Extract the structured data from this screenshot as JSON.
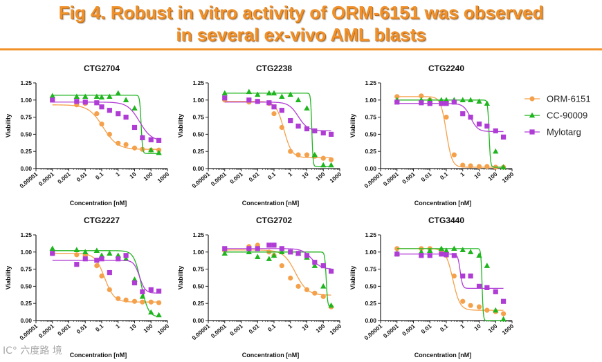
{
  "header": {
    "title_line1": "Fig 4. Robust in vitro activity of ORM-6151 was observed",
    "title_line2": "in several ex-vivo AML blasts"
  },
  "watermark": "IC° 六度路 境",
  "colors": {
    "accent": "#f0912b",
    "orm": "#f5a04a",
    "cc": "#1fb51f",
    "mylo": "#b03cd6"
  },
  "chart_data": [
    {
      "type": "scatter",
      "title": "CTG2704",
      "xlabel": "Concentration [nM]",
      "ylabel": "Viability",
      "xscale": "log",
      "xlim": [
        1e-05,
        1000
      ],
      "ylim": [
        0,
        1.25
      ],
      "xticks": [
        "0.00001",
        "0.0001",
        "0.001",
        "0.01",
        "0.1",
        "1",
        "10",
        "100",
        "1000"
      ],
      "yticks": [
        "0.00",
        "0.25",
        "0.50",
        "0.75",
        "1.00",
        "1.25"
      ],
      "series": [
        {
          "name": "ORM-6151",
          "marker": "circle",
          "x": [
            0.0001,
            0.003,
            0.01,
            0.05,
            0.1,
            0.3,
            1,
            3,
            10,
            30,
            100,
            300
          ],
          "y": [
            1.0,
            0.93,
            0.95,
            0.8,
            0.65,
            0.5,
            0.37,
            0.35,
            0.3,
            0.28,
            0.27,
            0.27
          ],
          "curve": {
            "top": 0.93,
            "bottom": 0.28,
            "ec50": 0.12,
            "hill": 1.0
          }
        },
        {
          "name": "CC-90009",
          "marker": "triangle",
          "x": [
            0.0001,
            0.003,
            0.01,
            0.05,
            0.1,
            0.3,
            1,
            3,
            10,
            30,
            100,
            300
          ],
          "y": [
            1.06,
            1.05,
            1.05,
            1.05,
            1.04,
            1.05,
            1.1,
            1.0,
            0.88,
            0.45,
            0.27,
            0.23
          ],
          "curve": {
            "top": 1.07,
            "bottom": 0.22,
            "ec50": 25,
            "hill": 10
          }
        },
        {
          "name": "Mylotarg",
          "marker": "square",
          "x": [
            0.0001,
            0.003,
            0.01,
            0.05,
            0.1,
            0.3,
            1,
            3,
            10,
            30,
            100,
            300
          ],
          "y": [
            1.0,
            0.98,
            0.97,
            0.96,
            0.9,
            0.85,
            0.8,
            0.75,
            0.6,
            0.45,
            0.42,
            0.41
          ],
          "curve": {
            "top": 0.97,
            "bottom": 0.4,
            "ec50": 20,
            "hill": 1.2
          }
        }
      ]
    },
    {
      "type": "scatter",
      "title": "CTG2238",
      "xlabel": "Concentration [nM]",
      "ylabel": "Viability",
      "xscale": "log",
      "xlim": [
        1e-05,
        1000
      ],
      "ylim": [
        0,
        1.25
      ],
      "xticks": [
        "0.00001",
        "0.0001",
        "0.001",
        "0.01",
        "0.1",
        "1",
        "10",
        "100",
        "1000"
      ],
      "yticks": [
        "0.00",
        "0.25",
        "0.50",
        "0.75",
        "1.00",
        "1.25"
      ],
      "series": [
        {
          "name": "ORM-6151",
          "marker": "circle",
          "x": [
            0.0001,
            0.003,
            0.01,
            0.05,
            0.1,
            0.3,
            1,
            3,
            10,
            30,
            100,
            300
          ],
          "y": [
            1.0,
            0.97,
            0.98,
            0.95,
            0.8,
            0.6,
            0.25,
            0.2,
            0.2,
            0.18,
            0.15,
            0.13
          ],
          "curve": {
            "top": 0.98,
            "bottom": 0.16,
            "ec50": 0.4,
            "hill": 1.8
          }
        },
        {
          "name": "CC-90009",
          "marker": "triangle",
          "x": [
            0.0001,
            0.003,
            0.01,
            0.05,
            0.1,
            0.3,
            1,
            3,
            10,
            30,
            100,
            300
          ],
          "y": [
            1.1,
            1.12,
            1.08,
            1.1,
            1.1,
            1.05,
            1.08,
            1.0,
            0.88,
            0.2,
            0.05,
            0.05
          ],
          "curve": {
            "top": 1.1,
            "bottom": 0.03,
            "ec50": 20,
            "hill": 12
          }
        },
        {
          "name": "Mylotarg",
          "marker": "square",
          "x": [
            0.0001,
            0.003,
            0.01,
            0.05,
            0.1,
            0.3,
            1,
            3,
            10,
            30,
            100,
            300
          ],
          "y": [
            1.03,
            1.0,
            0.98,
            0.96,
            0.9,
            0.85,
            0.7,
            0.62,
            0.58,
            0.55,
            0.52,
            0.5
          ],
          "curve": {
            "top": 0.97,
            "bottom": 0.55,
            "ec50": 3,
            "hill": 1.5
          }
        }
      ]
    },
    {
      "type": "scatter",
      "title": "CTG2240",
      "xlabel": "Concentration [nM]",
      "ylabel": "Viability",
      "xscale": "log",
      "xlim": [
        1e-05,
        1000
      ],
      "ylim": [
        0,
        1.25
      ],
      "xticks": [
        "0.00001",
        "0.0001",
        "0.001",
        "0.01",
        "0.1",
        "1",
        "10",
        "100",
        "1000"
      ],
      "yticks": [
        "0.00",
        "0.25",
        "0.50",
        "0.75",
        "1.00",
        "1.25"
      ],
      "series": [
        {
          "name": "ORM-6151",
          "marker": "circle",
          "x": [
            0.0001,
            0.003,
            0.01,
            0.05,
            0.1,
            0.3,
            1,
            3,
            10,
            30,
            100,
            300
          ],
          "y": [
            1.05,
            1.06,
            1.0,
            0.95,
            0.75,
            0.2,
            0.05,
            0.04,
            0.03,
            0.03,
            0.02,
            0.02
          ],
          "curve": {
            "top": 1.05,
            "bottom": 0.02,
            "ec50": 0.1,
            "hill": 2.5
          }
        },
        {
          "name": "CC-90009",
          "marker": "triangle",
          "x": [
            0.0001,
            0.003,
            0.01,
            0.05,
            0.1,
            0.3,
            1,
            3,
            10,
            30,
            100,
            300
          ],
          "y": [
            1.0,
            1.0,
            1.0,
            1.0,
            1.0,
            1.0,
            1.0,
            1.0,
            0.98,
            0.95,
            0.25,
            0.02
          ],
          "curve": {
            "top": 1.0,
            "bottom": 0.02,
            "ec50": 40,
            "hill": 10
          }
        },
        {
          "name": "Mylotarg",
          "marker": "square",
          "x": [
            0.0001,
            0.003,
            0.01,
            0.05,
            0.1,
            0.3,
            1,
            3,
            10,
            30,
            100,
            300
          ],
          "y": [
            0.97,
            0.96,
            0.95,
            0.95,
            0.95,
            0.97,
            0.8,
            0.75,
            0.65,
            0.62,
            0.55,
            0.46
          ],
          "curve": {
            "top": 0.95,
            "bottom": 0.54,
            "ec50": 3,
            "hill": 2
          }
        }
      ]
    },
    {
      "type": "scatter",
      "title": "CTG2227",
      "xlabel": "Concentration [nM]",
      "ylabel": "Viability",
      "xscale": "log",
      "xlim": [
        1e-05,
        1000
      ],
      "ylim": [
        0,
        1.25
      ],
      "xticks": [
        "0.00001",
        "0.0001",
        "0.001",
        "0.01",
        "0.1",
        "1",
        "10",
        "100",
        "1000"
      ],
      "yticks": [
        "0.00",
        "0.25",
        "0.50",
        "0.75",
        "1.00",
        "1.25"
      ],
      "series": [
        {
          "name": "ORM-6151",
          "marker": "circle",
          "x": [
            0.0001,
            0.003,
            0.01,
            0.05,
            0.1,
            0.3,
            1,
            3,
            10,
            30,
            100,
            300
          ],
          "y": [
            0.98,
            0.96,
            0.95,
            0.8,
            0.65,
            0.45,
            0.32,
            0.3,
            0.28,
            0.27,
            0.27,
            0.26
          ],
          "curve": {
            "top": 0.98,
            "bottom": 0.27,
            "ec50": 0.15,
            "hill": 1.5
          }
        },
        {
          "name": "CC-90009",
          "marker": "triangle",
          "x": [
            0.0001,
            0.003,
            0.01,
            0.05,
            0.1,
            0.3,
            1,
            3,
            10,
            30,
            100,
            300
          ],
          "y": [
            1.05,
            1.03,
            1.0,
            1.02,
            0.95,
            0.98,
            0.95,
            0.9,
            0.6,
            0.35,
            0.12,
            0.08
          ],
          "curve": {
            "top": 1.02,
            "bottom": 0.05,
            "ec50": 25,
            "hill": 2
          }
        },
        {
          "name": "Mylotarg",
          "marker": "square",
          "x": [
            0.0001,
            0.003,
            0.01,
            0.05,
            0.1,
            0.3,
            1,
            3,
            10,
            30,
            100,
            300
          ],
          "y": [
            0.98,
            0.82,
            0.9,
            0.88,
            0.9,
            0.7,
            0.9,
            0.95,
            0.55,
            0.42,
            0.45,
            0.43
          ],
          "curve": {
            "top": 0.88,
            "bottom": 0.4,
            "ec50": 20,
            "hill": 2.5
          }
        }
      ]
    },
    {
      "type": "scatter",
      "title": "CTG2702",
      "xlabel": "Concentration [nM]",
      "ylabel": "Viability",
      "xscale": "log",
      "xlim": [
        1e-05,
        1000
      ],
      "ylim": [
        0,
        1.25
      ],
      "xticks": [
        "0.00001",
        "0.0001",
        "0.001",
        "0.01",
        "0.1",
        "1",
        "10",
        "100",
        "1000"
      ],
      "yticks": [
        "0.00",
        "0.25",
        "0.50",
        "0.75",
        "1.00",
        "1.25"
      ],
      "series": [
        {
          "name": "ORM-6151",
          "marker": "circle",
          "x": [
            0.0001,
            0.003,
            0.01,
            0.05,
            0.1,
            0.3,
            1,
            3,
            10,
            30,
            100,
            300
          ],
          "y": [
            1.02,
            1.08,
            1.1,
            1.0,
            0.95,
            0.8,
            0.62,
            0.5,
            0.45,
            0.4,
            0.35,
            0.2
          ],
          "curve": {
            "top": 1.03,
            "bottom": 0.37,
            "ec50": 2,
            "hill": 1.2
          }
        },
        {
          "name": "CC-90009",
          "marker": "triangle",
          "x": [
            0.0001,
            0.003,
            0.01,
            0.05,
            0.1,
            0.3,
            1,
            3,
            10,
            30,
            100,
            300
          ],
          "y": [
            0.98,
            1.0,
            0.93,
            0.9,
            0.95,
            1.0,
            1.0,
            0.98,
            0.92,
            0.8,
            0.5,
            0.22
          ],
          "curve": {
            "top": 1.0,
            "bottom": 0.2,
            "ec50": 150,
            "hill": 10
          }
        },
        {
          "name": "Mylotarg",
          "marker": "square",
          "x": [
            0.0001,
            0.003,
            0.01,
            0.05,
            0.1,
            0.3,
            1,
            3,
            10,
            30,
            100,
            300
          ],
          "y": [
            1.05,
            1.05,
            1.05,
            1.1,
            1.1,
            1.05,
            1.0,
            0.98,
            0.95,
            0.85,
            0.8,
            0.72
          ],
          "curve": {
            "top": 1.05,
            "bottom": 0.75,
            "ec50": 20,
            "hill": 1.5
          }
        }
      ]
    },
    {
      "type": "scatter",
      "title": "CTG3440",
      "xlabel": "Concentration [nM]",
      "ylabel": "Viability",
      "xscale": "log",
      "xlim": [
        1e-05,
        1000
      ],
      "ylim": [
        0,
        1.25
      ],
      "xticks": [
        "0.00001",
        "0.0001",
        "0.001",
        "0.01",
        "0.1",
        "1",
        "10",
        "100",
        "1000"
      ],
      "yticks": [
        "0.00",
        "0.25",
        "0.50",
        "0.75",
        "1.00",
        "1.25"
      ],
      "series": [
        {
          "name": "ORM-6151",
          "marker": "circle",
          "x": [
            0.0001,
            0.003,
            0.01,
            0.05,
            0.1,
            0.3,
            1,
            3,
            10,
            30,
            100,
            300
          ],
          "y": [
            1.05,
            1.05,
            1.05,
            1.02,
            0.95,
            0.65,
            0.28,
            0.22,
            0.2,
            0.15,
            0.13,
            0.1
          ],
          "curve": {
            "top": 1.05,
            "bottom": 0.15,
            "ec50": 0.25,
            "hill": 2
          }
        },
        {
          "name": "CC-90009",
          "marker": "triangle",
          "x": [
            0.0001,
            0.003,
            0.01,
            0.05,
            0.1,
            0.3,
            1,
            3,
            10,
            30,
            100,
            300
          ],
          "y": [
            0.98,
            1.0,
            1.02,
            1.05,
            1.02,
            1.05,
            1.03,
            1.0,
            0.95,
            0.8,
            0.15,
            0.02
          ],
          "curve": {
            "top": 1.05,
            "bottom": 0.0,
            "ec50": 15,
            "hill": 12
          }
        },
        {
          "name": "Mylotarg",
          "marker": "square",
          "x": [
            0.0001,
            0.003,
            0.01,
            0.05,
            0.1,
            0.3,
            1,
            3,
            10,
            30,
            100,
            300
          ],
          "y": [
            0.97,
            0.95,
            0.95,
            0.97,
            0.96,
            0.95,
            0.65,
            0.65,
            0.5,
            0.48,
            0.42,
            0.28
          ],
          "curve": {
            "top": 0.97,
            "bottom": 0.47,
            "ec50": 0.7,
            "hill": 6
          }
        }
      ]
    }
  ],
  "legend": {
    "position": "right",
    "items": [
      {
        "label": "ORM-6151",
        "marker": "circle"
      },
      {
        "label": "CC-90009",
        "marker": "triangle"
      },
      {
        "label": "Mylotarg",
        "marker": "square"
      }
    ]
  }
}
